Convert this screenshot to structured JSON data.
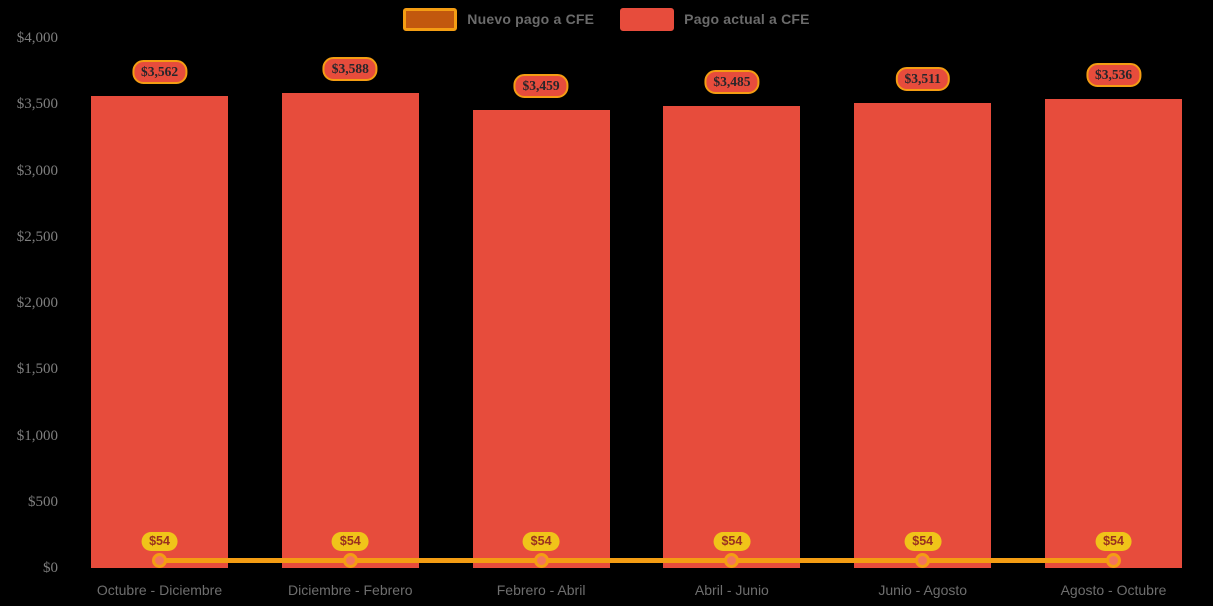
{
  "legend": {
    "items": [
      {
        "label": "Nuevo pago a CFE",
        "swatch_fill": "#C2580E",
        "swatch_border": "#F49D13"
      },
      {
        "label": "Pago actual a CFE",
        "swatch_fill": "#E74C3C",
        "swatch_border": "#E74C3C"
      }
    ]
  },
  "colors": {
    "background": "#000000",
    "bar": "#E74C3C",
    "line": "#F49D13",
    "marker_fill": "#F4745C",
    "marker_border": "#F49D13",
    "bar_badge_bg": "#E74C3C",
    "bar_badge_border": "#F49D13",
    "bar_badge_text": "#26262B",
    "line_badge_bg": "#F0C419",
    "line_badge_text": "#99301F",
    "axis_text": "#7F7F7F",
    "legend_text": "#6B6B6B"
  },
  "chart_data": {
    "type": "bar",
    "combo": "bar+line",
    "title": "",
    "xlabel": "",
    "ylabel": "",
    "grid": false,
    "legend_position": "top-center",
    "ylim": [
      0,
      4000
    ],
    "categories": [
      "Octubre - Diciembre",
      "Diciembre - Febrero",
      "Febrero - Abril",
      "Abril - Junio",
      "Junio - Agosto",
      "Agosto - Octubre"
    ],
    "series": [
      {
        "name": "Pago actual a CFE",
        "type": "bar",
        "color": "#E74C3C",
        "values": [
          3562,
          3588,
          3459,
          3485,
          3511,
          3536
        ],
        "data_labels": [
          "$3,562",
          "$3,588",
          "$3,459",
          "$3,485",
          "$3,511",
          "$3,536"
        ]
      },
      {
        "name": "Nuevo pago a CFE",
        "type": "line",
        "color": "#F49D13",
        "values": [
          54,
          54,
          54,
          54,
          54,
          54
        ],
        "data_labels": [
          "$54",
          "$54",
          "$54",
          "$54",
          "$54",
          "$54"
        ]
      }
    ],
    "y_ticks": [
      {
        "value": 4000,
        "label": "$4,000"
      },
      {
        "value": 3500,
        "label": "$3,500"
      },
      {
        "value": 3000,
        "label": "$3,000"
      },
      {
        "value": 2500,
        "label": "$2,500"
      },
      {
        "value": 2000,
        "label": "$2,000"
      },
      {
        "value": 1500,
        "label": "$1,500"
      },
      {
        "value": 1000,
        "label": "$1,000"
      },
      {
        "value": 500,
        "label": "$500"
      },
      {
        "value": 0,
        "label": "$0"
      }
    ]
  }
}
